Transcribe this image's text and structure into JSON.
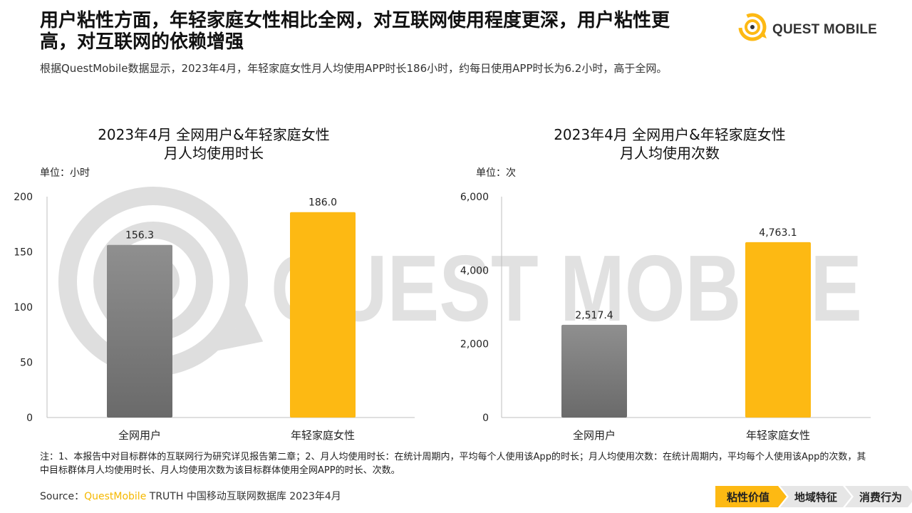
{
  "header": {
    "title": "用户粘性方面，年轻家庭女性相比全网，对互联网使用程度更深，用户粘性更高，对互联网的依赖增强",
    "subtitle": "根据QuestMobile数据显示，2023年4月，年轻家庭女性月人均使用APP时长186小时，约每日使用APP时长为6.2小时，高于全网。"
  },
  "logo": {
    "text": "QUEST MOBILE",
    "icon": "quest-mobile-logo-icon",
    "watermark_text": "QUEST MOBILE"
  },
  "colors": {
    "accent": "#FDB913",
    "gray_bar": "#7F7F7F",
    "nav_active": "#FDB913",
    "nav_inactive": "#E6E6E6"
  },
  "chart_data": [
    {
      "type": "bar",
      "title_line1": "2023年4月 全网用户&年轻家庭女性",
      "title_line2": "月人均使用时长",
      "unit_label": "单位：小时",
      "categories": [
        "全网用户",
        "年轻家庭女性"
      ],
      "values": [
        156.3,
        186.0
      ],
      "value_labels": [
        "156.3",
        "186.0"
      ],
      "bar_colors": [
        "#7F7F7F",
        "#FDB913"
      ],
      "ylim": [
        0,
        200
      ],
      "yticks": [
        0,
        50,
        100,
        150,
        200
      ],
      "ytick_labels": [
        "0",
        "50",
        "100",
        "150",
        "200"
      ],
      "grid": false
    },
    {
      "type": "bar",
      "title_line1": "2023年4月 全网用户&年轻家庭女性",
      "title_line2": "月人均使用次数",
      "unit_label": "单位：次",
      "categories": [
        "全网用户",
        "年轻家庭女性"
      ],
      "values": [
        2517.4,
        4763.1
      ],
      "value_labels": [
        "2,517.4",
        "4,763.1"
      ],
      "bar_colors": [
        "#7F7F7F",
        "#FDB913"
      ],
      "ylim": [
        0,
        6000
      ],
      "yticks": [
        0,
        2000,
        4000,
        6000
      ],
      "ytick_labels": [
        "0",
        "2,000",
        "4,000",
        "6,000"
      ],
      "grid": false
    }
  ],
  "footer": {
    "note": "注：1、本报告中对目标群体的互联网行为研究详见报告第二章；2、月人均使用时长：在统计周期内，平均每个人使用该App的时长；月人均使用次数：在统计周期内，平均每个人使用该App的次数，其中目标群体月人均使用时长、月人均使用次数为该目标群体使用全网APP的时长、次数。",
    "source_prefix": "Source：",
    "source_brand": "QuestMobile",
    "source_rest": " TRUTH 中国移动互联网数据库 2023年4月"
  },
  "nav": {
    "items": [
      {
        "label": "粘性价值",
        "active": true
      },
      {
        "label": "地域特征",
        "active": false
      },
      {
        "label": "消费行为",
        "active": false
      }
    ]
  }
}
